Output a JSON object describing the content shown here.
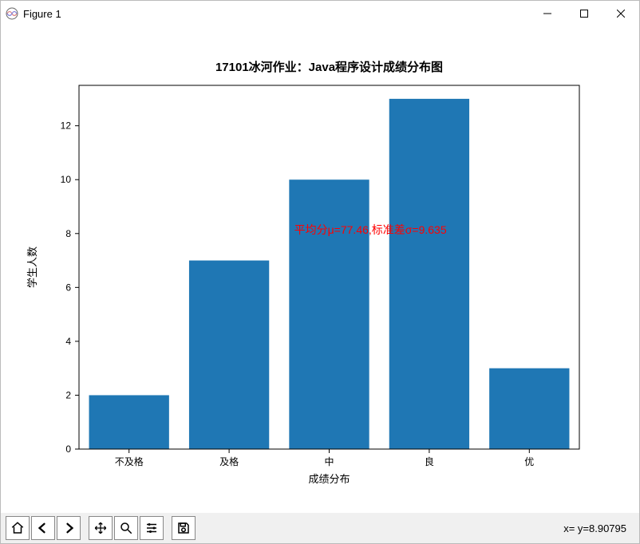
{
  "window": {
    "title": "Figure 1"
  },
  "chart": {
    "type": "bar",
    "title": "17101冰河作业：Java程序设计成绩分布图",
    "title_fontsize": 15,
    "title_color": "#000000",
    "xlabel": "成绩分布",
    "ylabel": "学生人数",
    "label_fontsize": 13,
    "categories": [
      "不及格",
      "及格",
      "中",
      "良",
      "优"
    ],
    "values": [
      2,
      7,
      10,
      13,
      3
    ],
    "bar_color": "#1f77b4",
    "bar_width": 0.8,
    "background_color": "#ffffff",
    "axes_border_color": "#000000",
    "axes_border_width": 1,
    "ylim": [
      0,
      13.5
    ],
    "yticks": [
      0,
      2,
      4,
      6,
      8,
      10,
      12
    ],
    "tick_fontsize": 12,
    "tick_color": "#000000",
    "annotation": {
      "text": "平均分μ=77.46,标准差σ=9.635",
      "color": "#ff0000",
      "fontsize": 14,
      "x_data": 2.0,
      "y_data": 8.0
    }
  },
  "toolbar": {
    "home": "Home",
    "back": "Back",
    "forward": "Forward",
    "pan": "Pan",
    "zoom": "Zoom",
    "configure": "Configure subplots",
    "save": "Save"
  },
  "status": {
    "coords": "x= y=8.90795"
  }
}
